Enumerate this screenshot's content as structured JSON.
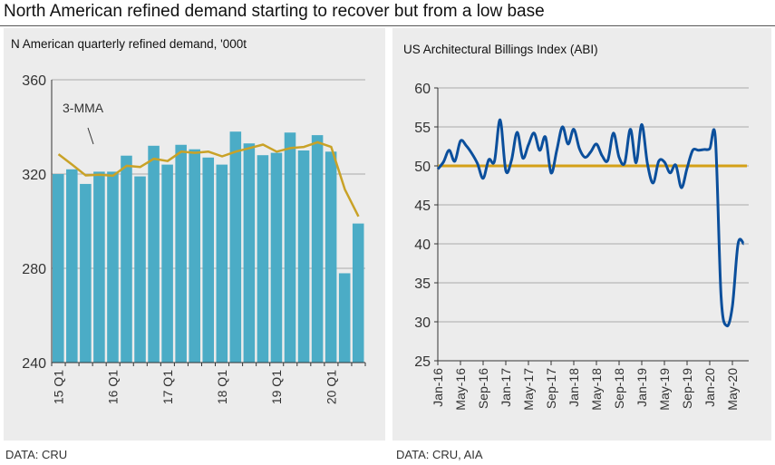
{
  "title": "North American refined demand starting to recover but from a low base",
  "chart_data": [
    {
      "type": "bar",
      "title": "N American quarterly refined demand, '000t",
      "source": "DATA: CRU",
      "categories": [
        "15 Q1",
        "15 Q2",
        "15 Q3",
        "15 Q4",
        "16 Q1",
        "16 Q2",
        "16 Q3",
        "16 Q4",
        "17 Q1",
        "17 Q2",
        "17 Q3",
        "17 Q4",
        "18 Q1",
        "18 Q2",
        "18 Q3",
        "18 Q4",
        "19 Q1",
        "19 Q2",
        "19 Q3",
        "19 Q4",
        "20 Q1",
        "20 Q2",
        "20 Q3"
      ],
      "tick_labels": [
        "15 Q1",
        "16 Q1",
        "17 Q1",
        "18 Q1",
        "19 Q1",
        "20 Q1"
      ],
      "values": [
        320,
        322,
        315.8,
        321,
        321,
        327.8,
        319,
        332,
        324,
        332.4,
        330.5,
        327,
        324,
        338,
        333,
        328,
        329,
        337.6,
        330,
        336.5,
        329.5,
        277.9,
        299
      ],
      "line": {
        "name": "3-MMA",
        "values": [
          328.4,
          324,
          319.4,
          319.7,
          319.3,
          323.5,
          323,
          326.5,
          325.5,
          329.5,
          329,
          329.5,
          327.5,
          329.5,
          331,
          332.5,
          329.5,
          331,
          331.5,
          333.5,
          331.5,
          313.5,
          302
        ]
      },
      "annotation": "3-MMA",
      "ylim": [
        240,
        360
      ],
      "yticks": [
        240,
        280,
        320,
        360
      ],
      "grid": true,
      "colors": {
        "bar": "#4bacc6",
        "line": "#c9a227"
      }
    },
    {
      "type": "line",
      "title": "US Architectural Billings Index (ABI)",
      "source": "DATA: CRU, AIA",
      "x_start": "Jan-16",
      "x_end": "Jul-20",
      "tick_labels": [
        "Jan-16",
        "May-16",
        "Sep-16",
        "Jan-17",
        "May-17",
        "Sep-17",
        "Jan-18",
        "May-18",
        "Sep-18",
        "Jan-19",
        "May-19",
        "Sep-19",
        "Jan-20",
        "May-20"
      ],
      "values": [
        49.6,
        50.5,
        52.0,
        50.6,
        53.2,
        52.6,
        51.6,
        50.3,
        48.4,
        50.8,
        50.6,
        55.9,
        49.4,
        50.7,
        54.3,
        51.0,
        52.7,
        54.2,
        52.0,
        53.7,
        49.1,
        52.0,
        55.0,
        52.8,
        54.7,
        52.2,
        51.1,
        51.8,
        52.8,
        51.3,
        50.7,
        54.2,
        51.1,
        50.4,
        54.7,
        50.4,
        55.3,
        50.3,
        47.8,
        50.6,
        50.5,
        49.1,
        50.1,
        47.2,
        49.7,
        52.0,
        52.0,
        52.1,
        52.2,
        53.5,
        33.3,
        29.5,
        32.0,
        40.0,
        40.0
      ],
      "reference_line": 50,
      "ylim": [
        25,
        60
      ],
      "yticks": [
        25,
        30,
        35,
        40,
        45,
        50,
        55,
        60
      ],
      "grid": true,
      "colors": {
        "line": "#0b4f9c",
        "reference": "#d4a017"
      }
    }
  ]
}
